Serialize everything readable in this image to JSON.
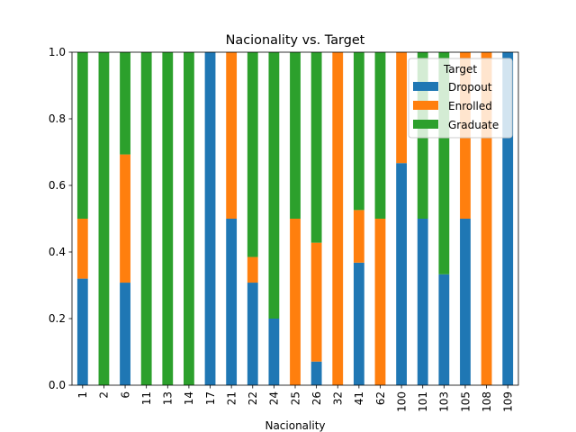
{
  "chart_data": {
    "type": "bar",
    "stacked": true,
    "title": "Nacionality vs. Target",
    "xlabel": "Nacionality",
    "ylabel": "",
    "ylim": [
      0,
      1.0
    ],
    "yticks": [
      "0.0",
      "0.2",
      "0.4",
      "0.6",
      "0.8",
      "1.0"
    ],
    "grid": false,
    "legend": {
      "title": "Target",
      "placement": "top-right"
    },
    "categories": [
      "1",
      "2",
      "6",
      "11",
      "13",
      "14",
      "17",
      "21",
      "22",
      "24",
      "25",
      "26",
      "32",
      "41",
      "62",
      "100",
      "101",
      "103",
      "105",
      "108",
      "109"
    ],
    "series": [
      {
        "name": "Dropout",
        "color": "#1f77b4",
        "values": [
          0.32,
          0.0,
          0.308,
          0.0,
          0.0,
          0.0,
          1.0,
          0.5,
          0.308,
          0.2,
          0.0,
          0.071,
          0.0,
          0.368,
          0.0,
          0.667,
          0.5,
          0.333,
          0.5,
          0.0,
          1.0
        ]
      },
      {
        "name": "Enrolled",
        "color": "#ff7f0e",
        "values": [
          0.18,
          0.0,
          0.385,
          0.0,
          0.0,
          0.0,
          0.0,
          0.5,
          0.077,
          0.0,
          0.5,
          0.357,
          1.0,
          0.158,
          0.5,
          0.333,
          0.0,
          0.0,
          0.5,
          1.0,
          0.0
        ]
      },
      {
        "name": "Graduate",
        "color": "#2ca02c",
        "values": [
          0.5,
          1.0,
          0.307,
          1.0,
          1.0,
          1.0,
          0.0,
          0.0,
          0.615,
          0.8,
          0.5,
          0.572,
          0.0,
          0.474,
          0.5,
          0.0,
          0.5,
          0.667,
          0.0,
          0.0,
          0.0
        ]
      }
    ]
  }
}
